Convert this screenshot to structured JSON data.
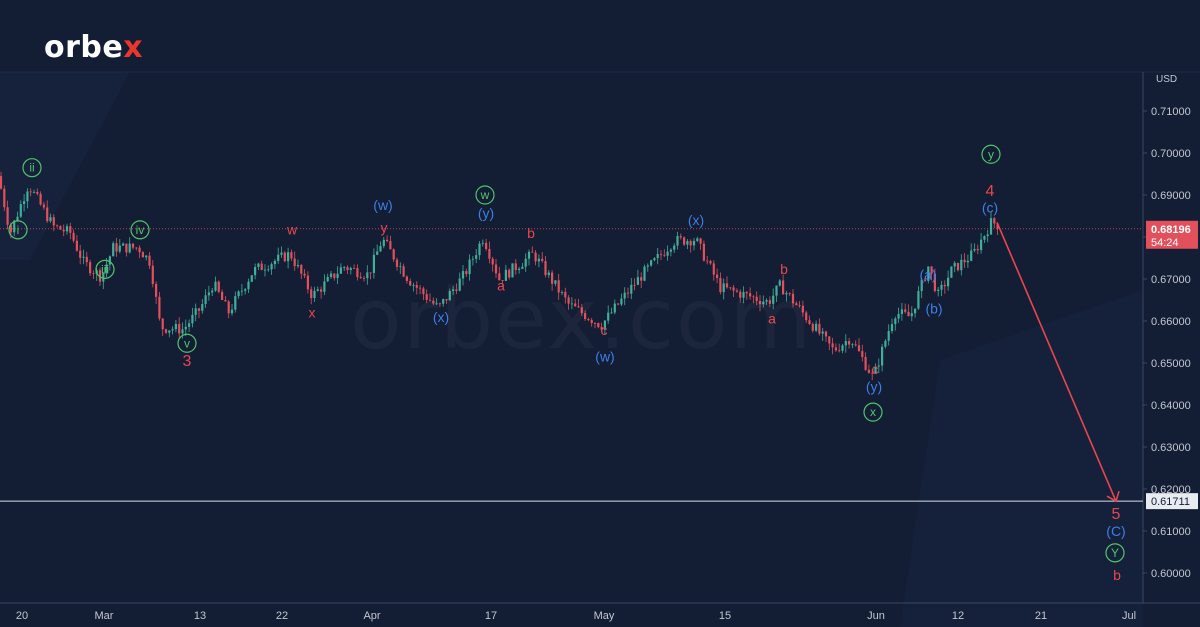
{
  "brand": {
    "logo_main": "orbe",
    "logo_accent": "x",
    "watermark": "orbex.com"
  },
  "colors": {
    "background": "#131d34",
    "candle_up": "#3fae9a",
    "candle_down": "#e2505c",
    "wave_red": "#e8464e",
    "wave_blue": "#3d7fe6",
    "wave_green": "#52c46a",
    "axis_text": "#c3c7d0"
  },
  "chart_data": {
    "type": "candlestick",
    "y_axis": {
      "unit": "USD",
      "ticks": [
        "0.71000",
        "0.70000",
        "0.69000",
        "0.68000",
        "0.67000",
        "0.66000",
        "0.65000",
        "0.64000",
        "0.63000",
        "0.62000",
        "0.61000",
        "0.60000"
      ],
      "range": [
        0.5955,
        0.7185
      ],
      "position": "right"
    },
    "x_axis": {
      "ticks": [
        "20",
        "Mar",
        "13",
        "22",
        "Apr",
        "17",
        "May",
        "15",
        "Jun",
        "12",
        "21",
        "Jul"
      ]
    },
    "current_price": {
      "value": "0.68196",
      "countdown": "54:24"
    },
    "target_line": {
      "value": "0.61711"
    },
    "forecast_arrow": {
      "from": 0.6835,
      "to": 0.6171,
      "direction": "down"
    },
    "price_path_knots": [
      [
        0,
        0.6945
      ],
      [
        12,
        0.681
      ],
      [
        30,
        0.6925
      ],
      [
        55,
        0.6825
      ],
      [
        72,
        0.681
      ],
      [
        85,
        0.674
      ],
      [
        103,
        0.6705
      ],
      [
        115,
        0.6775
      ],
      [
        140,
        0.6775
      ],
      [
        152,
        0.674
      ],
      [
        162,
        0.6585
      ],
      [
        185,
        0.658
      ],
      [
        202,
        0.663
      ],
      [
        215,
        0.669
      ],
      [
        230,
        0.662
      ],
      [
        255,
        0.672
      ],
      [
        292,
        0.676
      ],
      [
        314,
        0.666
      ],
      [
        345,
        0.673
      ],
      [
        370,
        0.671
      ],
      [
        384,
        0.6795
      ],
      [
        410,
        0.67
      ],
      [
        440,
        0.663
      ],
      [
        466,
        0.671
      ],
      [
        485,
        0.68
      ],
      [
        501,
        0.67
      ],
      [
        535,
        0.676
      ],
      [
        570,
        0.664
      ],
      [
        603,
        0.659
      ],
      [
        640,
        0.67
      ],
      [
        675,
        0.679
      ],
      [
        697,
        0.6795
      ],
      [
        722,
        0.668
      ],
      [
        770,
        0.6645
      ],
      [
        782,
        0.6685
      ],
      [
        835,
        0.653
      ],
      [
        852,
        0.656
      ],
      [
        875,
        0.6465
      ],
      [
        896,
        0.662
      ],
      [
        912,
        0.661
      ],
      [
        930,
        0.673
      ],
      [
        940,
        0.666
      ],
      [
        953,
        0.672
      ],
      [
        975,
        0.676
      ],
      [
        993,
        0.6835
      ],
      [
        1000,
        0.683
      ]
    ],
    "wave_labels": [
      {
        "text": "ii",
        "style": "green-circle",
        "x": 32,
        "price": 0.6965
      },
      {
        "text": "i",
        "style": "green-circle",
        "x": 18,
        "price": 0.6817
      },
      {
        "text": "iv",
        "style": "green-circle",
        "x": 140,
        "price": 0.6817
      },
      {
        "text": "iii",
        "style": "green-circle",
        "x": 105,
        "price": 0.6723
      },
      {
        "text": "v",
        "style": "green-circle",
        "x": 187,
        "price": 0.6547
      },
      {
        "text": "3",
        "style": "red",
        "x": 187,
        "price": 0.6505
      },
      {
        "text": "w",
        "style": "red",
        "x": 292,
        "price": 0.6818
      },
      {
        "text": "x",
        "style": "red",
        "x": 312,
        "price": 0.662
      },
      {
        "text": "(w)",
        "style": "blue",
        "x": 383,
        "price": 0.6876
      },
      {
        "text": "y",
        "style": "red",
        "x": 384,
        "price": 0.6823
      },
      {
        "text": "w",
        "style": "green-circle",
        "x": 485,
        "price": 0.69
      },
      {
        "text": "(y)",
        "style": "blue",
        "x": 486,
        "price": 0.6857
      },
      {
        "text": "b",
        "style": "red",
        "x": 531,
        "price": 0.6809
      },
      {
        "text": "a",
        "style": "red",
        "x": 501,
        "price": 0.6685
      },
      {
        "text": "(x)",
        "style": "blue",
        "x": 441,
        "price": 0.661
      },
      {
        "text": "c",
        "style": "red",
        "x": 604,
        "price": 0.6578
      },
      {
        "text": "(w)",
        "style": "blue",
        "x": 605,
        "price": 0.6515
      },
      {
        "text": "(x)",
        "style": "blue",
        "x": 696,
        "price": 0.6841
      },
      {
        "text": "b",
        "style": "red",
        "x": 784,
        "price": 0.6724
      },
      {
        "text": "a",
        "style": "red",
        "x": 772,
        "price": 0.6606
      },
      {
        "text": "c",
        "style": "red",
        "x": 875,
        "price": 0.6486
      },
      {
        "text": "(y)",
        "style": "blue",
        "x": 874,
        "price": 0.6444
      },
      {
        "text": "x",
        "style": "green-circle",
        "x": 873,
        "price": 0.6383
      },
      {
        "text": "(a)",
        "style": "blue",
        "x": 928,
        "price": 0.6711
      },
      {
        "text": "(b)",
        "style": "blue",
        "x": 934,
        "price": 0.663
      },
      {
        "text": "y",
        "style": "green-circle",
        "x": 991,
        "price": 0.6997
      },
      {
        "text": "4",
        "style": "red",
        "x": 990,
        "price": 0.691
      },
      {
        "text": "(c)",
        "style": "blue",
        "x": 990,
        "price": 0.687
      },
      {
        "text": "5",
        "style": "red",
        "x": 1116,
        "price": 0.614
      },
      {
        "text": "(C)",
        "style": "blue",
        "x": 1116,
        "price": 0.61
      },
      {
        "text": "Y",
        "style": "green-circle",
        "x": 1115,
        "price": 0.6048
      },
      {
        "text": "b",
        "style": "red",
        "x": 1117,
        "price": 0.5995
      }
    ]
  }
}
